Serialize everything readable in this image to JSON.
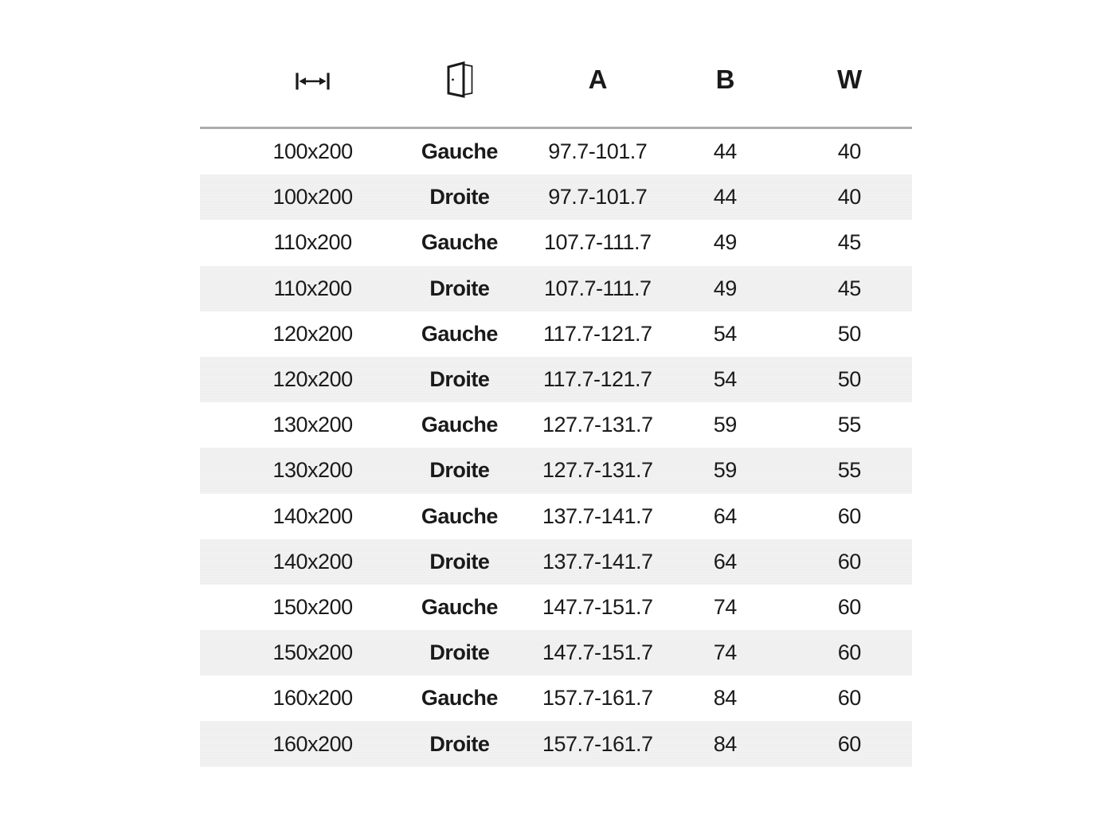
{
  "chart_data": {
    "type": "table",
    "columns": [
      {
        "key": "size",
        "label": "",
        "icon": "width-arrow-icon",
        "meaning": "dimensions"
      },
      {
        "key": "side",
        "label": "",
        "icon": "door-icon",
        "meaning": "door opening side"
      },
      {
        "key": "a",
        "label": "A"
      },
      {
        "key": "b",
        "label": "B"
      },
      {
        "key": "w",
        "label": "W"
      }
    ],
    "rows": [
      {
        "size": "100x200",
        "side": "Gauche",
        "a": "97.7-101.7",
        "b": "44",
        "w": "40"
      },
      {
        "size": "100x200",
        "side": "Droite",
        "a": "97.7-101.7",
        "b": "44",
        "w": "40"
      },
      {
        "size": "110x200",
        "side": "Gauche",
        "a": "107.7-111.7",
        "b": "49",
        "w": "45"
      },
      {
        "size": "110x200",
        "side": "Droite",
        "a": "107.7-111.7",
        "b": "49",
        "w": "45"
      },
      {
        "size": "120x200",
        "side": "Gauche",
        "a": "117.7-121.7",
        "b": "54",
        "w": "50"
      },
      {
        "size": "120x200",
        "side": "Droite",
        "a": "117.7-121.7",
        "b": "54",
        "w": "50"
      },
      {
        "size": "130x200",
        "side": "Gauche",
        "a": "127.7-131.7",
        "b": "59",
        "w": "55"
      },
      {
        "size": "130x200",
        "side": "Droite",
        "a": "127.7-131.7",
        "b": "59",
        "w": "55"
      },
      {
        "size": "140x200",
        "side": "Gauche",
        "a": "137.7-141.7",
        "b": "64",
        "w": "60"
      },
      {
        "size": "140x200",
        "side": "Droite",
        "a": "137.7-141.7",
        "b": "64",
        "w": "60"
      },
      {
        "size": "150x200",
        "side": "Gauche",
        "a": "147.7-151.7",
        "b": "74",
        "w": "60"
      },
      {
        "size": "150x200",
        "side": "Droite",
        "a": "147.7-151.7",
        "b": "74",
        "w": "60"
      },
      {
        "size": "160x200",
        "side": "Gauche",
        "a": "157.7-161.7",
        "b": "84",
        "w": "60"
      },
      {
        "size": "160x200",
        "side": "Droite",
        "a": "157.7-161.7",
        "b": "84",
        "w": "60"
      }
    ],
    "layout_hints": {
      "striped": true,
      "stripe_rows": "even",
      "header_separator": true
    }
  },
  "colors": {
    "text": "#1a1a1a",
    "stripe": "#f0f0f0",
    "separator": "#adadad",
    "background": "#ffffff"
  }
}
